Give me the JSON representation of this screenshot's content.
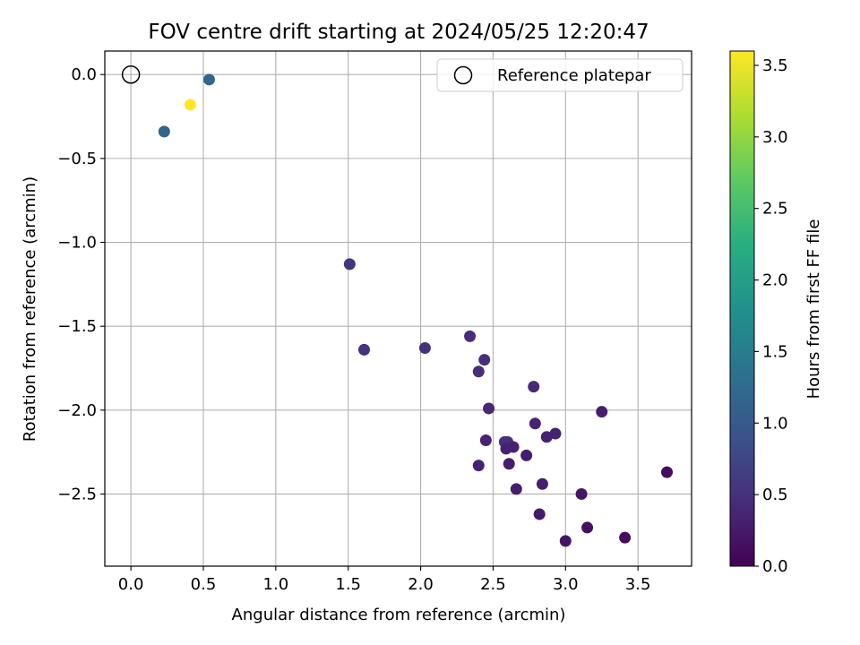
{
  "chart_data": {
    "type": "scatter",
    "title": "FOV centre drift starting at 2024/05/25 12:20:47",
    "xlabel": "Angular distance from reference (arcmin)",
    "ylabel": "Rotation from reference (arcmin)",
    "xlim": [
      -0.18,
      3.87
    ],
    "ylim": [
      -2.93,
      0.14
    ],
    "x_ticks": [
      0.0,
      0.5,
      1.0,
      1.5,
      2.0,
      2.5,
      3.0,
      3.5
    ],
    "x_tick_labels": [
      "0.0",
      "0.5",
      "1.0",
      "1.5",
      "2.0",
      "2.5",
      "3.0",
      "3.5"
    ],
    "y_ticks": [
      0.0,
      -0.5,
      -1.0,
      -1.5,
      -2.0,
      -2.5
    ],
    "y_tick_labels": [
      "0.0",
      "−0.5",
      "−1.0",
      "−1.5",
      "−2.0",
      "−2.5"
    ],
    "grid": true,
    "legend": {
      "placement": "top-right",
      "entries": [
        {
          "label": "Reference platepar",
          "marker": "open-circle"
        }
      ]
    },
    "reference_point": {
      "x": 0.0,
      "y": 0.0
    },
    "colorbar": {
      "label": "Hours from first FF file",
      "range": [
        0.0,
        3.6
      ],
      "ticks": [
        0.0,
        0.5,
        1.0,
        1.5,
        2.0,
        2.5,
        3.0,
        3.5
      ],
      "tick_labels": [
        "0.0",
        "0.5",
        "1.0",
        "1.5",
        "2.0",
        "2.5",
        "3.0",
        "3.5"
      ],
      "colormap": "viridis"
    },
    "points": [
      {
        "x": 0.54,
        "y": -0.03,
        "c": 1.2
      },
      {
        "x": 0.41,
        "y": -0.18,
        "c": 3.6
      },
      {
        "x": 0.23,
        "y": -0.34,
        "c": 1.15
      },
      {
        "x": 1.51,
        "y": -1.13,
        "c": 0.55
      },
      {
        "x": 1.61,
        "y": -1.64,
        "c": 0.5
      },
      {
        "x": 2.03,
        "y": -1.63,
        "c": 0.5
      },
      {
        "x": 2.34,
        "y": -1.56,
        "c": 0.45
      },
      {
        "x": 2.44,
        "y": -1.7,
        "c": 0.45
      },
      {
        "x": 2.4,
        "y": -1.77,
        "c": 0.45
      },
      {
        "x": 2.78,
        "y": -1.86,
        "c": 0.4
      },
      {
        "x": 2.47,
        "y": -1.99,
        "c": 0.4
      },
      {
        "x": 3.25,
        "y": -2.01,
        "c": 0.3
      },
      {
        "x": 2.79,
        "y": -2.08,
        "c": 0.35
      },
      {
        "x": 2.93,
        "y": -2.14,
        "c": 0.35
      },
      {
        "x": 2.87,
        "y": -2.16,
        "c": 0.35
      },
      {
        "x": 2.45,
        "y": -2.18,
        "c": 0.35
      },
      {
        "x": 2.58,
        "y": -2.19,
        "c": 0.5
      },
      {
        "x": 2.6,
        "y": -2.19,
        "c": 0.5
      },
      {
        "x": 2.64,
        "y": -2.22,
        "c": 0.35
      },
      {
        "x": 2.59,
        "y": -2.23,
        "c": 0.35
      },
      {
        "x": 2.73,
        "y": -2.27,
        "c": 0.3
      },
      {
        "x": 2.61,
        "y": -2.32,
        "c": 0.3
      },
      {
        "x": 2.4,
        "y": -2.33,
        "c": 0.35
      },
      {
        "x": 3.7,
        "y": -2.37,
        "c": 0.1
      },
      {
        "x": 2.84,
        "y": -2.44,
        "c": 0.3
      },
      {
        "x": 2.66,
        "y": -2.47,
        "c": 0.3
      },
      {
        "x": 3.11,
        "y": -2.5,
        "c": 0.2
      },
      {
        "x": 2.82,
        "y": -2.62,
        "c": 0.25
      },
      {
        "x": 3.15,
        "y": -2.7,
        "c": 0.15
      },
      {
        "x": 3.41,
        "y": -2.76,
        "c": 0.1
      },
      {
        "x": 3.0,
        "y": -2.78,
        "c": 0.2
      }
    ]
  }
}
